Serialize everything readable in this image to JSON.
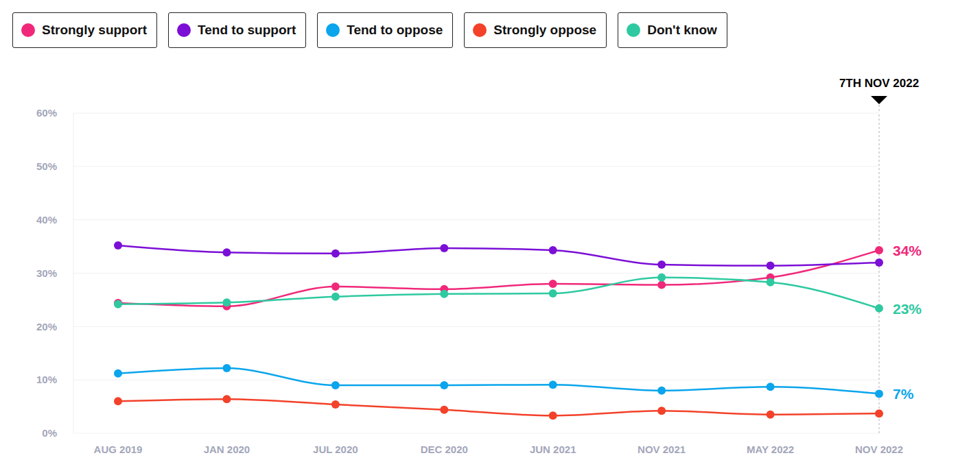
{
  "chart_data": {
    "type": "line",
    "categories": [
      "AUG 2019",
      "JAN 2020",
      "JUL 2020",
      "DEC 2020",
      "JUN 2021",
      "NOV 2021",
      "MAY 2022",
      "NOV 2022"
    ],
    "series": [
      {
        "name": "Strongly support",
        "color": "#f0287a",
        "values": [
          24.4,
          23.8,
          27.5,
          27.0,
          28.0,
          27.8,
          29.2,
          34.3
        ],
        "value_labels": [
          null,
          null,
          null,
          null,
          null,
          null,
          null,
          "34%"
        ]
      },
      {
        "name": "Tend to support",
        "color": "#7b0fd6",
        "values": [
          35.2,
          33.9,
          33.7,
          34.7,
          34.3,
          31.6,
          31.4,
          32.0
        ]
      },
      {
        "name": "Tend to oppose",
        "color": "#0aa5ec",
        "values": [
          11.2,
          12.2,
          9.0,
          9.0,
          9.1,
          8.0,
          8.7,
          7.4
        ],
        "value_labels": [
          null,
          null,
          null,
          null,
          null,
          null,
          null,
          "7%"
        ]
      },
      {
        "name": "Strongly oppose",
        "color": "#f3412a",
        "values": [
          6.0,
          6.4,
          5.4,
          4.4,
          3.3,
          4.2,
          3.5,
          3.7
        ]
      },
      {
        "name": "Don't know",
        "color": "#2ec9a0",
        "values": [
          24.2,
          24.5,
          25.6,
          26.1,
          26.2,
          29.2,
          28.3,
          23.4
        ],
        "value_labels": [
          null,
          null,
          null,
          null,
          null,
          null,
          null,
          "23%"
        ]
      }
    ],
    "ylim": [
      0,
      60
    ],
    "yticks": [
      {
        "value": 0,
        "label": "0%"
      },
      {
        "value": 10,
        "label": "10%"
      },
      {
        "value": 20,
        "label": "20%"
      },
      {
        "value": 30,
        "label": "30%"
      },
      {
        "value": 40,
        "label": "40%"
      },
      {
        "value": 50,
        "label": "50%"
      },
      {
        "value": 60,
        "label": "60%"
      }
    ],
    "grid": true,
    "legend": "top",
    "marker": "circle",
    "annotations": [
      {
        "text": "7TH NOV 2022",
        "x": "NOV 2022"
      }
    ]
  }
}
